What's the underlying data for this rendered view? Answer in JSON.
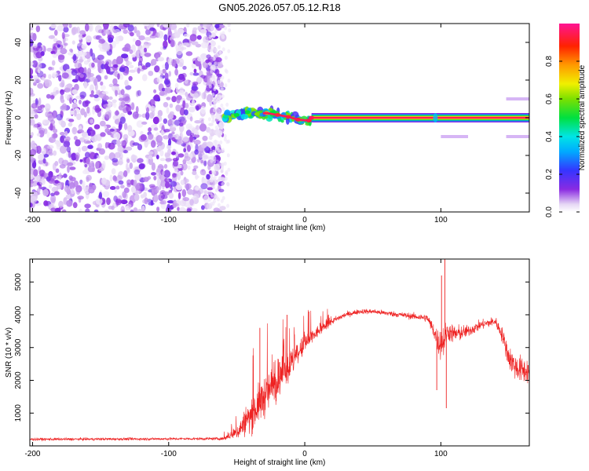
{
  "title": "GN05.2026.057.05.12.R18",
  "colors": {
    "snr_line": "#ee2222",
    "scatter_purple": "#8a2be2",
    "axis": "#000000",
    "background": "#ffffff"
  },
  "chart_data": [
    {
      "type": "heatmap",
      "name": "spectrogram",
      "xlabel": "Height of straight line (km)",
      "ylabel": "Frequency (Hz)",
      "xlim": [
        -202,
        165
      ],
      "ylim": [
        -50,
        50
      ],
      "xticks": [
        -200,
        -100,
        0,
        100
      ],
      "yticks": [
        -40,
        -20,
        0,
        20,
        40
      ],
      "noise_region_x": [
        -202,
        -60
      ],
      "onset_x": -60,
      "signal_trace": [
        {
          "x": -58,
          "y": 0.5,
          "amp": 0.45
        },
        {
          "x": -50,
          "y": 1.5,
          "amp": 0.5
        },
        {
          "x": -42,
          "y": 3,
          "amp": 0.5
        },
        {
          "x": -35,
          "y": 2,
          "amp": 0.6
        },
        {
          "x": -28,
          "y": 2.5,
          "amp": 0.75
        },
        {
          "x": -20,
          "y": 1.5,
          "amp": 0.85
        },
        {
          "x": -12,
          "y": 0.5,
          "amp": 0.85
        },
        {
          "x": -5,
          "y": -1,
          "amp": 0.9
        },
        {
          "x": 3,
          "y": -1.5,
          "amp": 0.9
        },
        {
          "x": 5,
          "y": 0,
          "amp": 0.95
        },
        {
          "x": 60,
          "y": 0,
          "amp": 0.97
        },
        {
          "x": 95,
          "y": 0,
          "amp": 0.95
        },
        {
          "x": 130,
          "y": 0,
          "amp": 0.97
        },
        {
          "x": 165,
          "y": 0,
          "amp": 0.97
        }
      ],
      "side_bands": [
        {
          "x0": 95,
          "x1": 102,
          "y": 0
        },
        {
          "x0": 148,
          "x1": 165,
          "y": 10
        },
        {
          "x0": 148,
          "x1": 165,
          "y": -10
        },
        {
          "x0": 100,
          "x1": 120,
          "y": -10
        }
      ],
      "colorbar": {
        "label": "Normalized spectral amplitude",
        "ticks": [
          0.0,
          0.2,
          0.4,
          0.6,
          0.8
        ],
        "tick_labels": [
          "0.0",
          "0.2",
          "0.4",
          "0.6",
          "0.8"
        ],
        "range": [
          0,
          1
        ]
      }
    },
    {
      "type": "line",
      "name": "snr",
      "xlabel": "Height of straight line (km)",
      "ylabel": "SNR (10 * v/v)",
      "xlim": [
        -202,
        165
      ],
      "ylim": [
        0,
        5700
      ],
      "xticks": [
        -200,
        -100,
        0,
        100
      ],
      "yticks": [
        1000,
        2000,
        3000,
        4000,
        5000
      ],
      "series": [
        {
          "name": "SNR",
          "color": "#ee2222",
          "x": [
            -202,
            -60,
            -50,
            -40,
            -30,
            -20,
            -10,
            0,
            10,
            20,
            30,
            40,
            50,
            60,
            70,
            80,
            90,
            95,
            98,
            100,
            102,
            105,
            110,
            120,
            130,
            140,
            145,
            150,
            155,
            160,
            165
          ],
          "y": [
            200,
            220,
            400,
            900,
            1500,
            2000,
            2500,
            3100,
            3500,
            3800,
            4000,
            4100,
            4100,
            4050,
            4000,
            3950,
            3900,
            3500,
            3150,
            3150,
            3200,
            3500,
            3400,
            3500,
            3700,
            3800,
            3400,
            2700,
            2400,
            2300,
            2300
          ],
          "noise": [
            70,
            70,
            350,
            900,
            1100,
            1000,
            800,
            500,
            300,
            180,
            140,
            130,
            130,
            140,
            150,
            170,
            200,
            450,
            700,
            850,
            900,
            500,
            500,
            300,
            250,
            250,
            400,
            600,
            700,
            700,
            700
          ],
          "spikes": [
            {
              "x": 103,
              "y": 5700
            },
            {
              "x": 104,
              "y": 1150
            },
            {
              "x": 100.5,
              "y": 5200
            },
            {
              "x": -33,
              "y": 3600
            },
            {
              "x": -13,
              "y": 4000
            },
            {
              "x": 3,
              "y": 4100
            },
            {
              "x": 97,
              "y": 1700
            }
          ]
        }
      ]
    }
  ]
}
